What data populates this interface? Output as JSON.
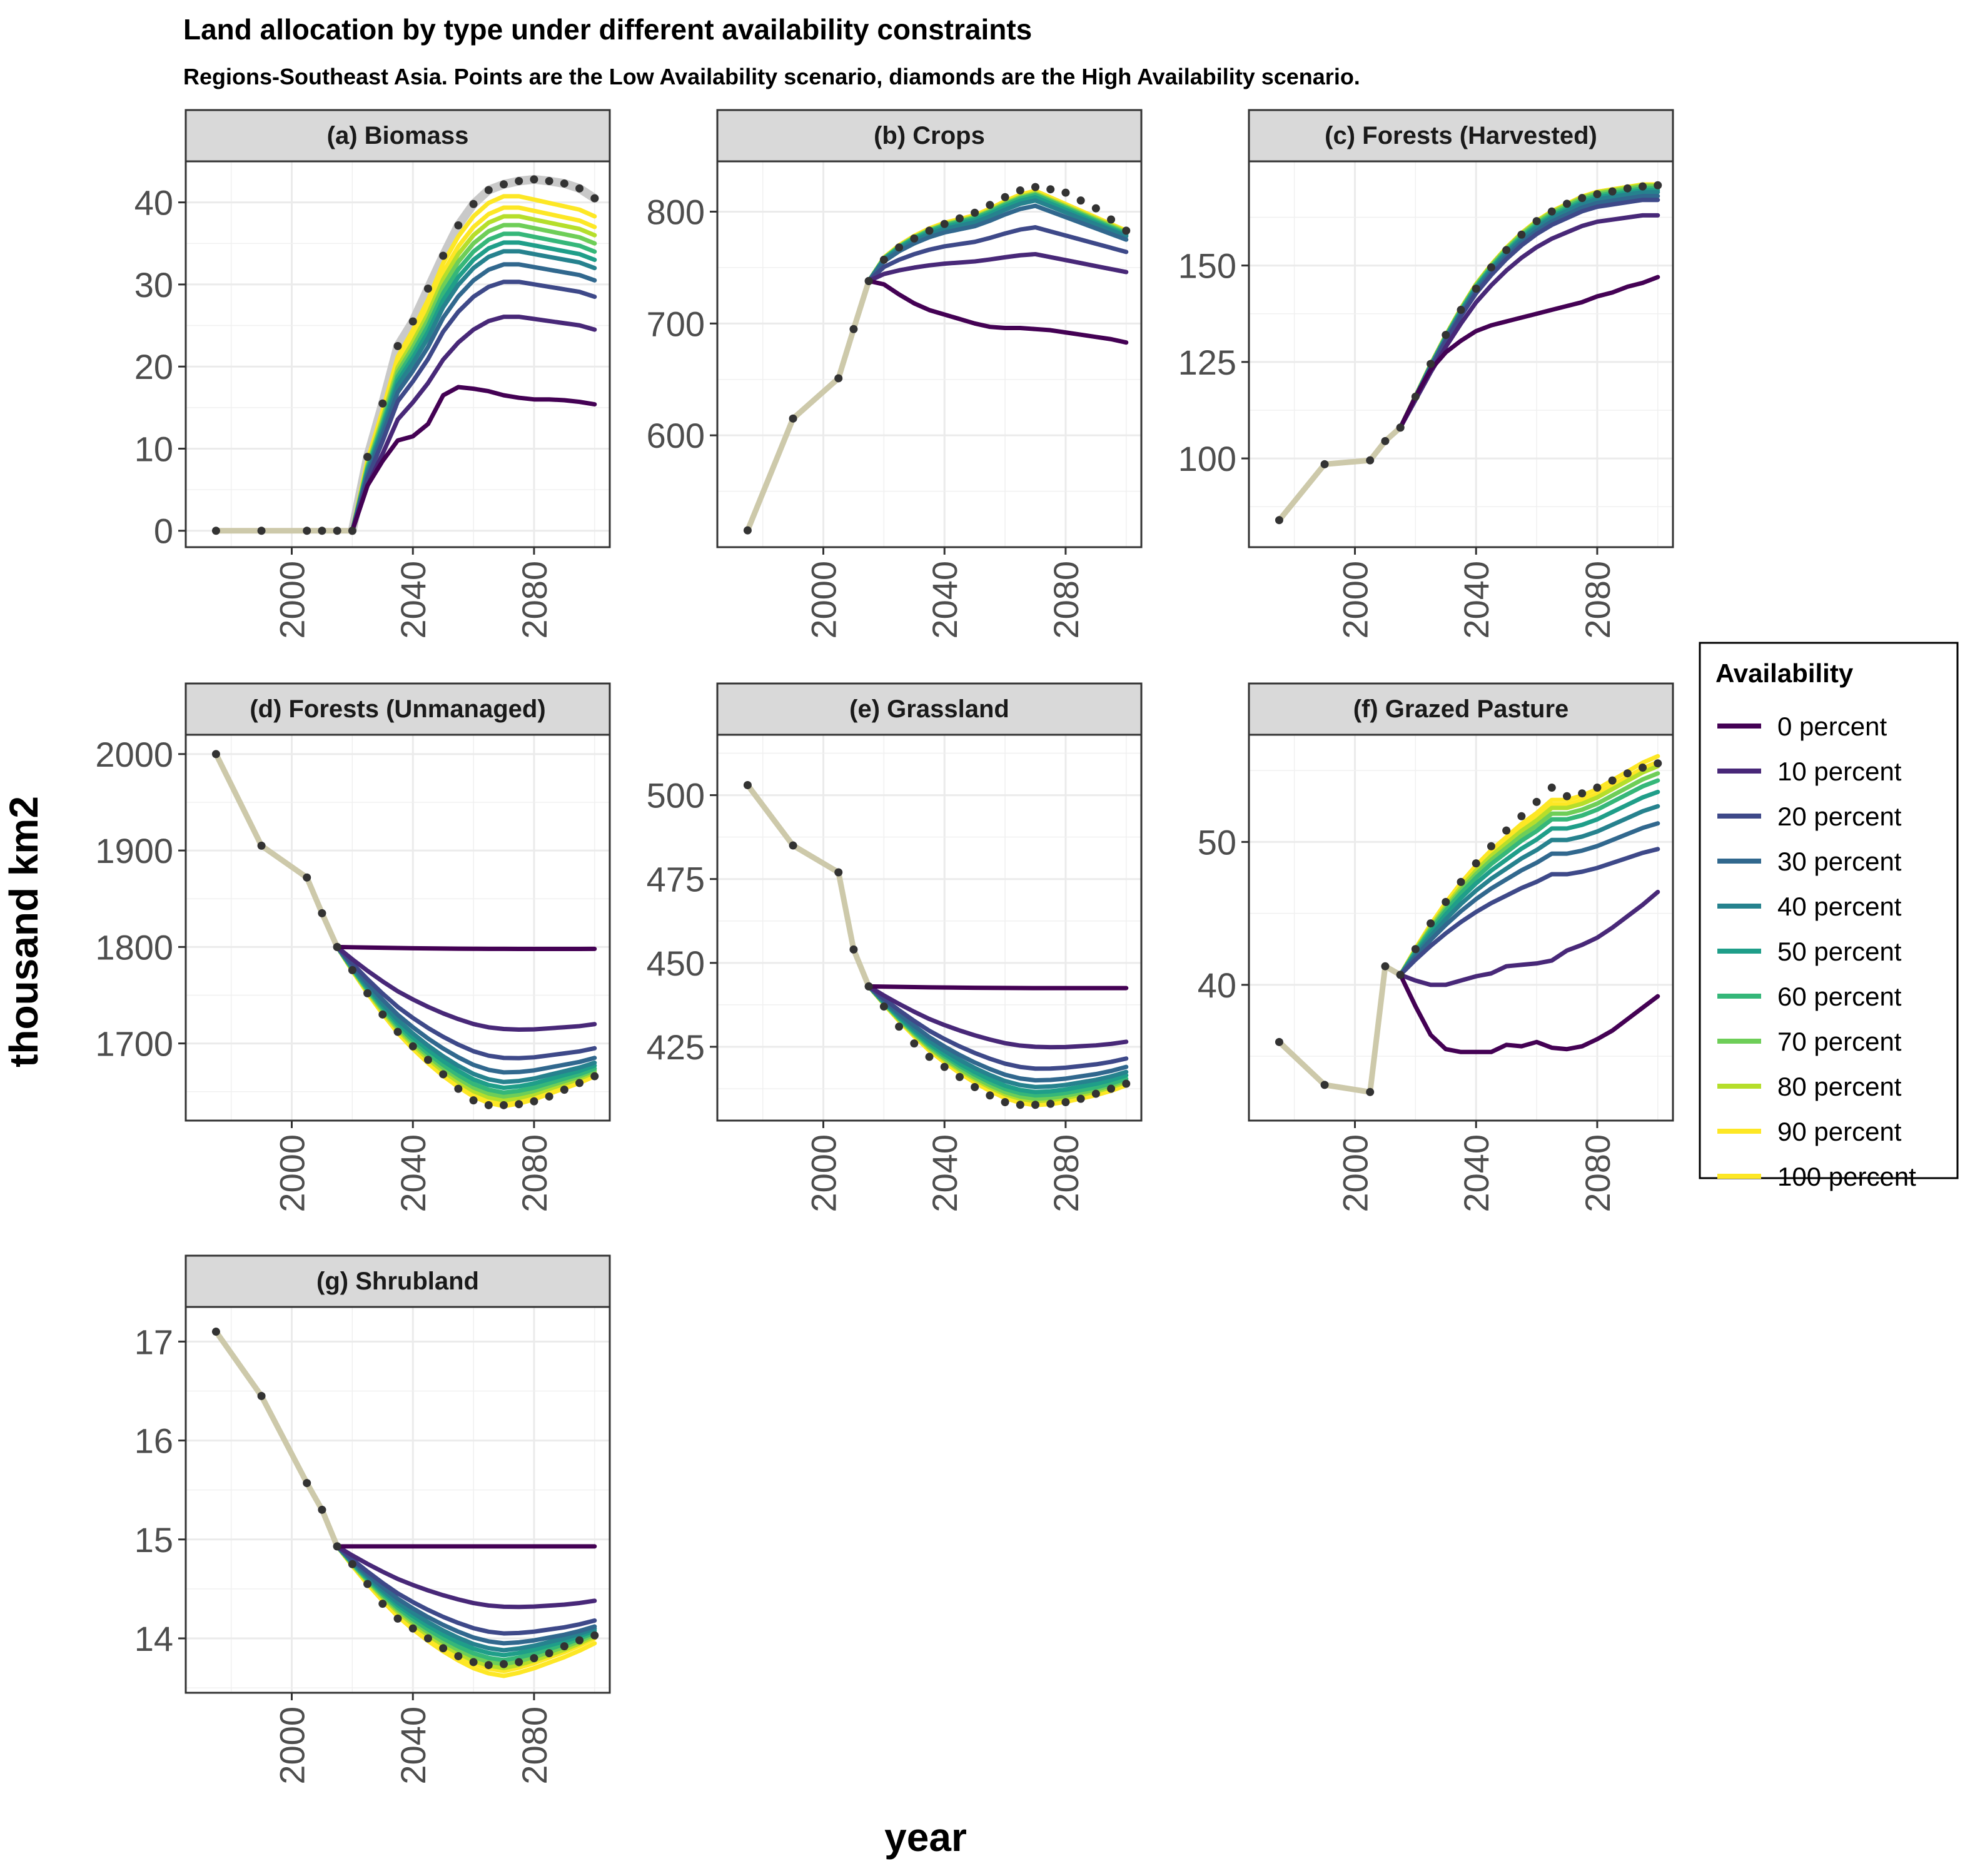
{
  "title": "Land allocation by type under different availability constraints",
  "subtitle": "Regions-Southeast Asia. Points are the Low Availability scenario, diamonds are the High Availability scenario.",
  "colors": {
    "series": [
      "#440154",
      "#482878",
      "#3e4989",
      "#31688e",
      "#26828e",
      "#1f9e89",
      "#35b779",
      "#6ece58",
      "#b5de2b",
      "#fde725",
      "#fde725"
    ],
    "history": "#cdc9aa",
    "upper_band": "#c9c9c9",
    "points": "#333333"
  },
  "chart_data": {
    "type": "line",
    "xlabel": "year",
    "ylabel": "thousand km2",
    "x_ticks": [
      "2000",
      "2040",
      "2080"
    ],
    "legend": {
      "title": "Availability",
      "position": "right",
      "entries": [
        "0 percent",
        "10 percent",
        "20 percent",
        "30 percent",
        "40 percent",
        "50 percent",
        "60 percent",
        "70 percent",
        "80 percent",
        "90 percent",
        "100 percent"
      ]
    },
    "grid": true,
    "panels": [
      {
        "label": "(a) Biomass",
        "xlim": [
          1965,
          2105
        ],
        "ylim": [
          -2,
          45
        ],
        "yticks": [
          0,
          10,
          20,
          30,
          40
        ],
        "yticklabels": [
          "0",
          "10",
          "20",
          "30",
          "40"
        ],
        "history": {
          "x": [
            1975,
            1990,
            2005,
            2010,
            2015,
            2020
          ],
          "y": [
            0,
            0,
            0,
            0,
            0,
            0
          ]
        },
        "future_x": [
          2020,
          2025,
          2030,
          2035,
          2040,
          2045,
          2050,
          2055,
          2060,
          2065,
          2070,
          2075,
          2080,
          2085,
          2090,
          2095,
          2100
        ],
        "profile": [
          0,
          0.21,
          0.36,
          0.52,
          0.6,
          0.69,
          0.8,
          0.88,
          0.94,
          0.98,
          1,
          1,
          0.99,
          0.98,
          0.97,
          0.96,
          0.94
        ],
        "finals": [
          15.4,
          24.5,
          28.5,
          30.5,
          32,
          33,
          34,
          35,
          36,
          37,
          38.3
        ],
        "upper_final": 40,
        "upper_band": {
          "y": [
            0,
            9,
            15.5,
            22.5,
            25.5,
            29.5,
            33.5,
            37.2,
            39.8,
            41.5,
            42.2,
            42.6,
            42.8,
            42.6,
            42.3,
            41.7,
            40.5
          ]
        },
        "custom": {
          "0": [
            0,
            5.5,
            8.5,
            11,
            11.5,
            13,
            16.5,
            17.5,
            17.3,
            17,
            16.5,
            16.2,
            16,
            16,
            15.9,
            15.7,
            15.4
          ]
        }
      },
      {
        "label": "(b) Crops",
        "xlim": [
          1965,
          2105
        ],
        "ylim": [
          500,
          845
        ],
        "yticks": [
          600,
          700,
          800
        ],
        "yticklabels": [
          "600",
          "700",
          "800"
        ],
        "history": {
          "x": [
            1975,
            1990,
            2005,
            2010,
            2015
          ],
          "y": [
            515,
            615,
            651,
            695,
            738
          ]
        },
        "future_x": [
          2015,
          2020,
          2025,
          2030,
          2035,
          2040,
          2045,
          2050,
          2055,
          2060,
          2065,
          2070,
          2075,
          2080,
          2085,
          2090,
          2095,
          2100
        ],
        "profile": [
          0,
          0.25,
          0.38,
          0.48,
          0.56,
          0.62,
          0.66,
          0.7,
          0.77,
          0.85,
          0.92,
          0.96,
          0.95,
          0.93,
          0.9,
          0.86,
          0.82,
          0.77
        ],
        "finals": [
          683,
          746,
          764,
          775,
          778,
          779,
          780,
          781,
          782,
          782,
          783
        ],
        "peak_delta": [
          0,
          25,
          50,
          70,
          75,
          78,
          80,
          81,
          82,
          83,
          84
        ],
        "custom": {
          "0": [
            738,
            735,
            726,
            718,
            712,
            708,
            704,
            700,
            697,
            696,
            696,
            695,
            694,
            692,
            690,
            688,
            686,
            683
          ]
        },
        "points": {
          "x": [
            2015,
            2020,
            2025,
            2030,
            2035,
            2040,
            2045,
            2050,
            2055,
            2060,
            2065,
            2070,
            2075,
            2080,
            2085,
            2090,
            2095,
            2100
          ],
          "y": [
            738,
            757,
            768,
            776,
            783,
            789,
            794,
            799,
            806,
            813,
            819,
            822,
            820,
            817,
            810,
            803,
            793,
            783
          ]
        }
      },
      {
        "label": "(c) Forests (Harvested)",
        "xlim": [
          1965,
          2105
        ],
        "ylim": [
          77,
          177
        ],
        "yticks": [
          100,
          125,
          150
        ],
        "yticklabels": [
          "100",
          "125",
          "150"
        ],
        "history": {
          "x": [
            1975,
            1990,
            2005,
            2010,
            2015
          ],
          "y": [
            84,
            98.5,
            99.5,
            104.5,
            108
          ]
        },
        "future_x": [
          2015,
          2020,
          2025,
          2030,
          2035,
          2040,
          2045,
          2050,
          2055,
          2060,
          2065,
          2070,
          2075,
          2080,
          2085,
          2090,
          2095,
          2100
        ],
        "profile": [
          0,
          0.13,
          0.26,
          0.38,
          0.49,
          0.59,
          0.67,
          0.74,
          0.8,
          0.85,
          0.89,
          0.92,
          0.95,
          0.97,
          0.98,
          0.99,
          1,
          1
        ],
        "finals": [
          147,
          163,
          167,
          168,
          169,
          169.5,
          170,
          170.5,
          170.8,
          171,
          171
        ],
        "custom": {
          "0": [
            108,
            116,
            123,
            127.5,
            130.5,
            133,
            134.5,
            135.5,
            136.5,
            137.5,
            138.5,
            139.5,
            140.5,
            142,
            143,
            144.5,
            145.5,
            147
          ]
        },
        "points": {
          "x": [
            2015,
            2020,
            2025,
            2030,
            2035,
            2040,
            2045,
            2050,
            2055,
            2060,
            2065,
            2070,
            2075,
            2080,
            2085,
            2090,
            2095,
            2100
          ],
          "y": [
            108,
            116,
            124.5,
            132,
            138.5,
            144,
            149.5,
            154,
            158,
            161.5,
            164,
            166,
            167.5,
            168.5,
            169.2,
            170,
            170.5,
            170.8
          ]
        }
      },
      {
        "label": "(d) Forests (Unmanaged)",
        "xlim": [
          1965,
          2105
        ],
        "ylim": [
          1620,
          2020
        ],
        "yticks": [
          1700,
          1800,
          1900,
          2000
        ],
        "yticklabels": [
          "1700",
          "1800",
          "1900",
          "2000"
        ],
        "history": {
          "x": [
            1975,
            1990,
            2005,
            2010,
            2015
          ],
          "y": [
            2000,
            1905,
            1872,
            1835,
            1800
          ]
        },
        "future_x": [
          2015,
          2020,
          2025,
          2030,
          2035,
          2040,
          2045,
          2050,
          2055,
          2060,
          2065,
          2070,
          2075,
          2080,
          2085,
          2090,
          2095,
          2100
        ],
        "profile": [
          0,
          0.15,
          0.29,
          0.42,
          0.54,
          0.64,
          0.73,
          0.81,
          0.88,
          0.94,
          0.98,
          1,
          1,
          0.99,
          0.97,
          0.95,
          0.93,
          0.9
        ],
        "finals": [
          1798,
          1720,
          1695,
          1685,
          1680,
          1677,
          1674,
          1672,
          1670,
          1668,
          1666
        ],
        "troughs": [
          1798,
          1715,
          1685,
          1670,
          1660,
          1654,
          1649,
          1645,
          1641,
          1638,
          1635
        ],
        "points": {
          "x": [
            2015,
            2020,
            2025,
            2030,
            2035,
            2040,
            2045,
            2050,
            2055,
            2060,
            2065,
            2070,
            2075,
            2080,
            2085,
            2090,
            2095,
            2100
          ],
          "y": [
            1800,
            1776,
            1752,
            1730,
            1712,
            1697,
            1683,
            1668,
            1653,
            1641,
            1636,
            1636,
            1637,
            1640,
            1645,
            1652,
            1659,
            1666
          ]
        }
      },
      {
        "label": "(e) Grassland",
        "xlim": [
          1965,
          2105
        ],
        "ylim": [
          403,
          518
        ],
        "yticks": [
          425,
          450,
          475,
          500
        ],
        "yticklabels": [
          "425",
          "450",
          "475",
          "500"
        ],
        "history": {
          "x": [
            1975,
            1990,
            2005,
            2010,
            2015
          ],
          "y": [
            503,
            485,
            477,
            454,
            443
          ]
        },
        "future_x": [
          2015,
          2020,
          2025,
          2030,
          2035,
          2040,
          2045,
          2050,
          2055,
          2060,
          2065,
          2070,
          2075,
          2080,
          2085,
          2090,
          2095,
          2100
        ],
        "profile": [
          0,
          0.15,
          0.29,
          0.42,
          0.54,
          0.64,
          0.73,
          0.81,
          0.88,
          0.94,
          0.98,
          1,
          1,
          0.99,
          0.97,
          0.95,
          0.92,
          0.88
        ],
        "finals": [
          442.5,
          426.5,
          421.5,
          419,
          417.5,
          416.5,
          415.5,
          415,
          414.5,
          414,
          413.5
        ],
        "troughs": [
          442.5,
          425,
          418.5,
          415,
          413,
          411.5,
          410.5,
          409.5,
          408.8,
          408.2,
          407.6
        ],
        "points": {
          "x": [
            2015,
            2020,
            2025,
            2030,
            2035,
            2040,
            2045,
            2050,
            2055,
            2060,
            2065,
            2070,
            2075,
            2080,
            2085,
            2090,
            2095,
            2100
          ],
          "y": [
            443,
            437,
            431,
            426,
            422,
            419,
            416,
            413,
            410.5,
            408.5,
            407.7,
            407.7,
            408,
            408.5,
            409.5,
            411,
            412.5,
            414
          ]
        }
      },
      {
        "label": "(f) Grazed Pasture",
        "xlim": [
          1965,
          2105
        ],
        "ylim": [
          30.5,
          57.5
        ],
        "yticks": [
          40,
          50
        ],
        "yticklabels": [
          "40",
          "50"
        ],
        "history": {
          "x": [
            1975,
            1990,
            2005,
            2010,
            2015
          ],
          "y": [
            36,
            33,
            32.5,
            41.3,
            40.7
          ]
        },
        "future_x": [
          2015,
          2020,
          2025,
          2030,
          2035,
          2040,
          2045,
          2050,
          2055,
          2060,
          2065,
          2070,
          2075,
          2080,
          2085,
          2090,
          2095,
          2100
        ],
        "profile": [
          0,
          0.12,
          0.23,
          0.33,
          0.42,
          0.5,
          0.57,
          0.63,
          0.69,
          0.74,
          0.8,
          0.8,
          0.82,
          0.85,
          0.89,
          0.93,
          0.97,
          1
        ],
        "finals": [
          39.2,
          46.5,
          49.5,
          51.3,
          52.5,
          53.5,
          54.3,
          54.8,
          55.3,
          55.6,
          56
        ],
        "custom": {
          "0": [
            40.7,
            38.5,
            36.5,
            35.5,
            35.3,
            35.3,
            35.3,
            35.8,
            35.7,
            36,
            35.6,
            35.5,
            35.7,
            36.2,
            36.8,
            37.6,
            38.4,
            39.2
          ],
          "1": [
            40.7,
            40.3,
            40,
            40,
            40.3,
            40.6,
            40.8,
            41.3,
            41.4,
            41.5,
            41.7,
            42.4,
            42.8,
            43.3,
            44,
            44.8,
            45.6,
            46.5
          ]
        },
        "points": {
          "x": [
            2015,
            2020,
            2025,
            2030,
            2035,
            2040,
            2045,
            2050,
            2055,
            2060,
            2065,
            2070,
            2075,
            2080,
            2085,
            2090,
            2095,
            2100
          ],
          "y": [
            40.7,
            42.5,
            44.3,
            45.8,
            47.2,
            48.5,
            49.7,
            50.8,
            51.8,
            52.8,
            53.8,
            53.2,
            53.4,
            53.8,
            54.3,
            54.8,
            55.2,
            55.5
          ]
        }
      },
      {
        "label": "(g) Shrubland",
        "xlim": [
          1965,
          2105
        ],
        "ylim": [
          13.45,
          17.35
        ],
        "yticks": [
          14,
          15,
          16,
          17
        ],
        "yticklabels": [
          "14",
          "15",
          "16",
          "17"
        ],
        "history": {
          "x": [
            1975,
            1990,
            2005,
            2010,
            2015
          ],
          "y": [
            17.1,
            16.45,
            15.57,
            15.3,
            14.93
          ]
        },
        "future_x": [
          2015,
          2020,
          2025,
          2030,
          2035,
          2040,
          2045,
          2050,
          2055,
          2060,
          2065,
          2070,
          2075,
          2080,
          2085,
          2090,
          2095,
          2100
        ],
        "profile": [
          0,
          0.15,
          0.29,
          0.42,
          0.54,
          0.64,
          0.73,
          0.81,
          0.88,
          0.94,
          0.98,
          1,
          1,
          0.99,
          0.97,
          0.95,
          0.92,
          0.88
        ],
        "finals": [
          14.93,
          14.38,
          14.18,
          14.12,
          14.1,
          14.08,
          14.06,
          14.04,
          14.02,
          14,
          13.95
        ],
        "troughs": [
          14.93,
          14.32,
          14.05,
          13.95,
          13.88,
          13.83,
          13.78,
          13.74,
          13.7,
          13.67,
          13.62
        ],
        "points": {
          "x": [
            2015,
            2020,
            2025,
            2030,
            2035,
            2040,
            2045,
            2050,
            2055,
            2060,
            2065,
            2070,
            2075,
            2080,
            2085,
            2090,
            2095,
            2100
          ],
          "y": [
            14.93,
            14.75,
            14.55,
            14.35,
            14.2,
            14.1,
            14,
            13.9,
            13.82,
            13.76,
            13.73,
            13.74,
            13.76,
            13.8,
            13.85,
            13.92,
            13.98,
            14.03
          ]
        }
      }
    ]
  }
}
